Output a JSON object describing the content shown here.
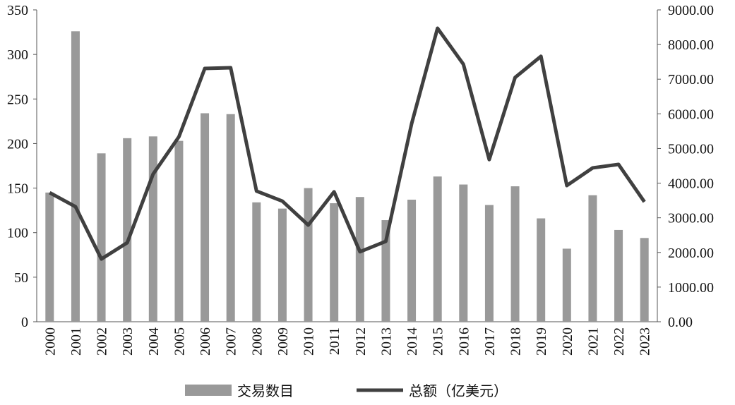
{
  "chart_data": {
    "type": "bar_line",
    "categories": [
      "2000",
      "2001",
      "2002",
      "2003",
      "2004",
      "2005",
      "2006",
      "2007",
      "2008",
      "2009",
      "2010",
      "2011",
      "2012",
      "2013",
      "2014",
      "2015",
      "2016",
      "2017",
      "2018",
      "2019",
      "2020",
      "2021",
      "2022",
      "2023"
    ],
    "series": [
      {
        "name": "交易数目",
        "type": "bar",
        "color": "#999999",
        "values": [
          145,
          326,
          189,
          206,
          208,
          203,
          234,
          233,
          134,
          127,
          150,
          133,
          140,
          114,
          137,
          163,
          154,
          131,
          152,
          116,
          82,
          142,
          103,
          94
        ]
      },
      {
        "name": "总额（亿美元）",
        "type": "line",
        "axis": "y2",
        "color": "#404040",
        "values": [
          3725,
          3320,
          1810,
          2280,
          4260,
          5340,
          7310,
          7330,
          3770,
          3480,
          2790,
          3750,
          2020,
          2320,
          5720,
          8470,
          7430,
          4680,
          7050,
          7660,
          3930,
          4440,
          4540,
          3460
        ]
      }
    ],
    "ylim": [
      0,
      350
    ],
    "yticks": [
      0,
      50,
      100,
      150,
      200,
      250,
      300,
      350
    ],
    "y2lim": [
      0,
      9000
    ],
    "y2ticks": [
      {
        "value": 0,
        "label": "0.00"
      },
      {
        "value": 1000,
        "label": "1000.00"
      },
      {
        "value": 2000,
        "label": "2000.00"
      },
      {
        "value": 3000,
        "label": "3000.00"
      },
      {
        "value": 4000,
        "label": "4000.00"
      },
      {
        "value": 5000,
        "label": "5000.00"
      },
      {
        "value": 6000,
        "label": "6000.00"
      },
      {
        "value": 7000,
        "label": "7000.00"
      },
      {
        "value": 8000,
        "label": "8000.00"
      },
      {
        "value": 9000,
        "label": "9000.00"
      }
    ],
    "legend": "bottom"
  }
}
